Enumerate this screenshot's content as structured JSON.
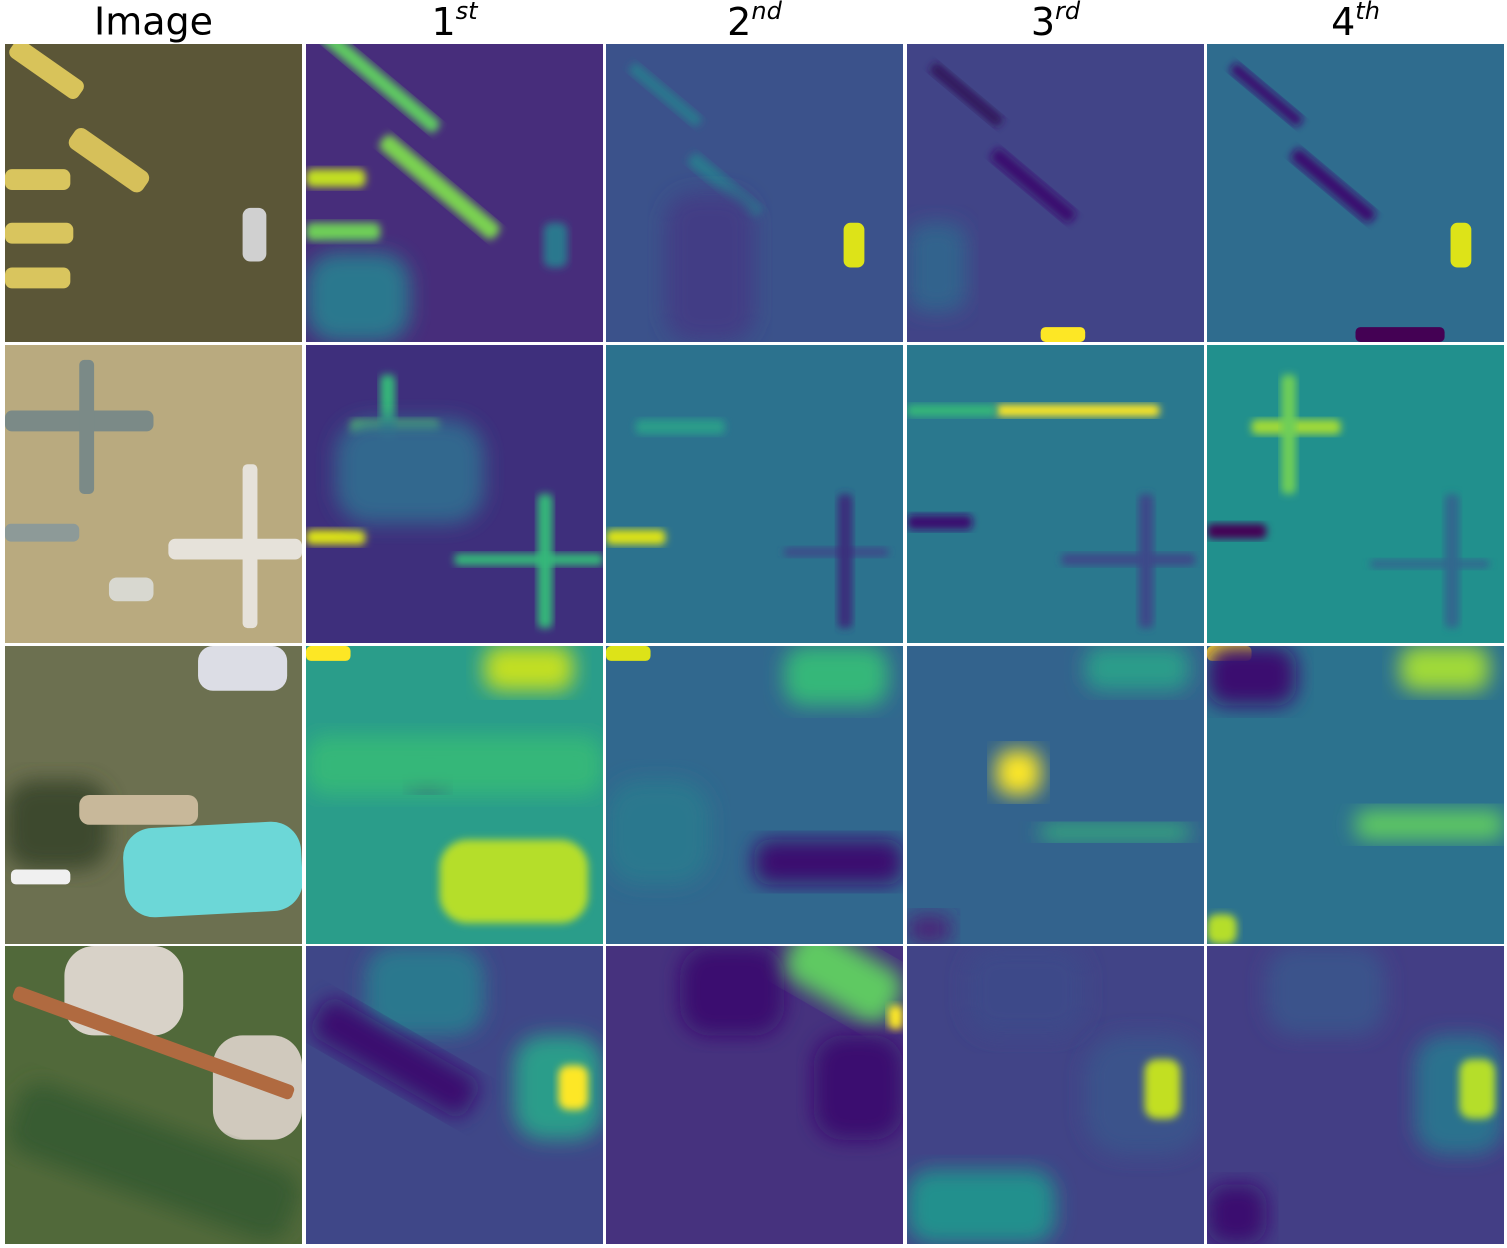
{
  "headers": [
    "Image",
    {
      "main": "1",
      "sup": "st"
    },
    {
      "main": "2",
      "sup": "nd"
    },
    {
      "main": "3",
      "sup": "rd"
    },
    {
      "main": "4",
      "sup": "th"
    }
  ]
}
